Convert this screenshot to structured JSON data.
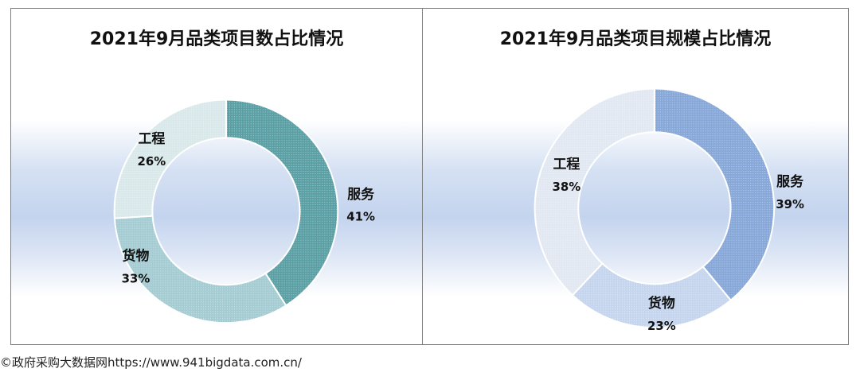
{
  "footer": "©政府采购大数据网https://www.941bigdata.com.cn/",
  "chart_data": [
    {
      "type": "pie",
      "title": "2021年9月品类项目数占比情况",
      "categories": [
        "服务",
        "货物",
        "工程"
      ],
      "values": [
        41,
        33,
        26
      ],
      "labels": [
        {
          "name": "服务",
          "value": "41%"
        },
        {
          "name": "货物",
          "value": "33%"
        },
        {
          "name": "工程",
          "value": "26%"
        }
      ],
      "colors": [
        "#5a9fa4",
        "#a4ccd2",
        "#d9e8ea"
      ],
      "legend": "none"
    },
    {
      "type": "pie",
      "title": "2021年9月品类项目规模占比情况",
      "categories": [
        "服务",
        "货物",
        "工程"
      ],
      "values": [
        39,
        23,
        38
      ],
      "labels": [
        {
          "name": "服务",
          "value": "39%"
        },
        {
          "name": "货物",
          "value": "23%"
        },
        {
          "name": "工程",
          "value": "38%"
        }
      ],
      "colors": [
        "#86a7d8",
        "#c5d5ee",
        "#e2e8f2"
      ],
      "legend": "none"
    }
  ]
}
